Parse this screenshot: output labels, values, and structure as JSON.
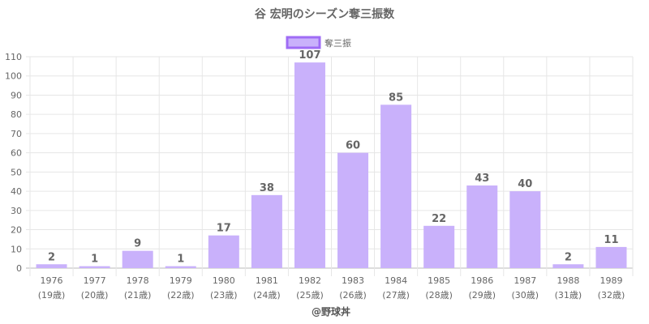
{
  "chart_data": {
    "type": "bar",
    "title": "谷 宏明のシーズン奪三振数",
    "legend": {
      "label": "奪三振",
      "position": "top"
    },
    "categories": [
      "1976",
      "1977",
      "1978",
      "1979",
      "1980",
      "1981",
      "1982",
      "1983",
      "1984",
      "1985",
      "1986",
      "1987",
      "1988",
      "1989"
    ],
    "sublabels": [
      "(19歳)",
      "(20歳)",
      "(21歳)",
      "(22歳)",
      "(23歳)",
      "(24歳)",
      "(25歳)",
      "(26歳)",
      "(27歳)",
      "(28歳)",
      "(29歳)",
      "(30歳)",
      "(31歳)",
      "(32歳)"
    ],
    "values": [
      2,
      1,
      9,
      1,
      17,
      38,
      107,
      60,
      85,
      22,
      43,
      40,
      2,
      11
    ],
    "ylim": [
      0,
      110
    ],
    "yticks": [
      0,
      10,
      20,
      30,
      40,
      50,
      60,
      70,
      80,
      90,
      100,
      110
    ],
    "xlabel": "",
    "ylabel": "",
    "grid": true,
    "colors": {
      "bar": "#c9b1fb",
      "border": "#9f6cf5"
    }
  },
  "credit": "@野球丼"
}
